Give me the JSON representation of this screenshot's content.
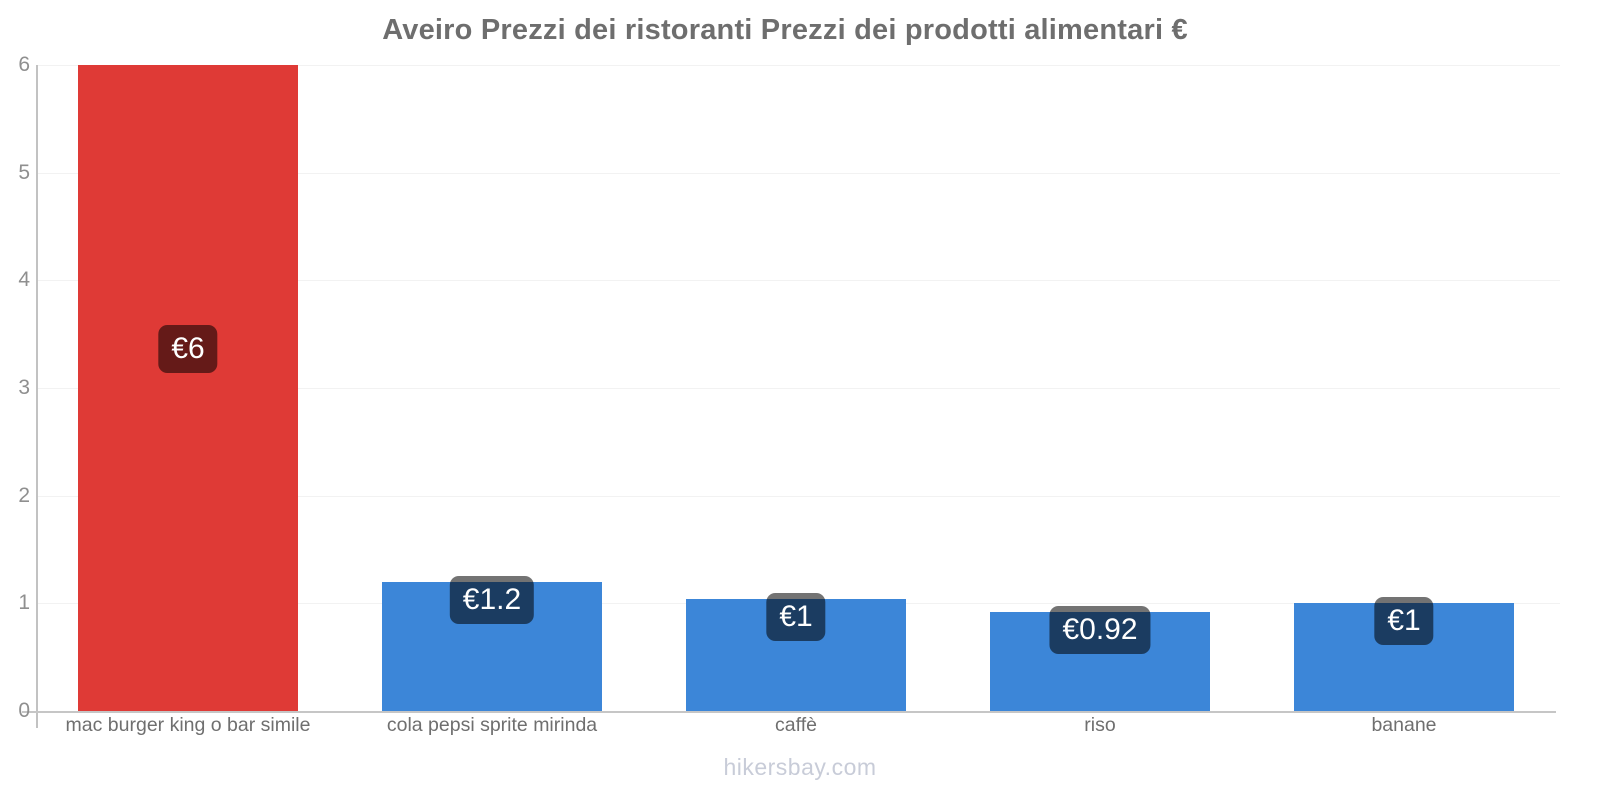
{
  "title": "Aveiro Prezzi dei ristoranti Prezzi dei prodotti alimentari €",
  "footer": "hikersbay.com",
  "colors": {
    "red_bar": "#df3a36",
    "blue_bar": "#3c86d8",
    "badge_bg": "rgba(0,0,0,0.55)",
    "badge_text": "#ffffff",
    "title_text": "#6e6e6e",
    "ytick_text": "#8f8f8f",
    "xlabel_text": "#6f6f6f",
    "footer_text": "#c8ccd8",
    "axis_line": "#c4c4c4",
    "gridline": "#f2f2f2"
  },
  "chart_data": {
    "type": "bar",
    "title": "Aveiro Prezzi dei ristoranti Prezzi dei prodotti alimentari €",
    "categories": [
      "mac burger king o bar simile",
      "cola pepsi sprite mirinda",
      "caffè",
      "riso",
      "banane"
    ],
    "values": [
      6,
      1.2,
      1.04,
      0.92,
      1.0
    ],
    "value_labels": [
      "€6",
      "€1.2",
      "€1",
      "€0.92",
      "€1"
    ],
    "bar_colors": [
      "#df3a36",
      "#3c86d8",
      "#3c86d8",
      "#3c86d8",
      "#3c86d8"
    ],
    "currency": "€",
    "xlabel": "",
    "ylabel": "",
    "ylim": [
      0,
      6
    ],
    "yticks": [
      0,
      1,
      2,
      3,
      4,
      5,
      6
    ],
    "grid": true,
    "legend": false,
    "watermark": "hikersbay.com"
  }
}
